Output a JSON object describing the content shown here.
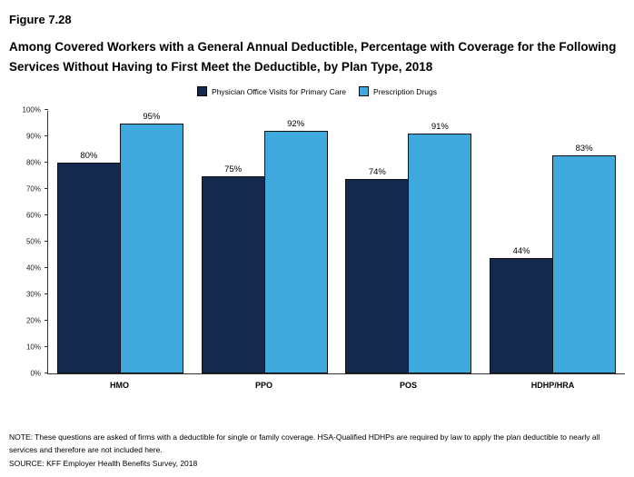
{
  "figure": {
    "number": "Figure 7.28",
    "title": "Among Covered Workers with a General Annual Deductible, Percentage with Coverage for the Following Services Without Having to First Meet the Deductible, by Plan Type, 2018"
  },
  "legend": [
    {
      "label": "Physician Office Visits for Primary Care",
      "color": "#15294E"
    },
    {
      "label": "Prescription Drugs",
      "color": "#3FA9DE"
    }
  ],
  "chart_data": {
    "type": "bar",
    "title": "Among Covered Workers with a General Annual Deductible, Percentage with Coverage for the Following Services Without Having to First Meet the Deductible, by Plan Type, 2018",
    "categories": [
      "HMO",
      "PPO",
      "POS",
      "HDHP/HRA"
    ],
    "series": [
      {
        "name": "Physician Office Visits for Primary Care",
        "color": "#15294E",
        "values": [
          80,
          75,
          74,
          44
        ]
      },
      {
        "name": "Prescription Drugs",
        "color": "#3FA9DE",
        "values": [
          95,
          92,
          91,
          83
        ]
      }
    ],
    "xlabel": "",
    "ylabel": "",
    "ylim": [
      0,
      100
    ],
    "yticks": [
      "0%",
      "10%",
      "20%",
      "30%",
      "40%",
      "50%",
      "60%",
      "70%",
      "80%",
      "90%",
      "100%"
    ],
    "value_suffix": "%",
    "grid": false,
    "legend_position": "top"
  },
  "notes": {
    "note": "NOTE: These questions are asked of firms with a deductible for single or family coverage. HSA-Qualified HDHPs are required by law to apply the plan deductible to nearly all services and therefore are not included here.",
    "source": "SOURCE: KFF Employer Health Benefits Survey, 2018"
  }
}
